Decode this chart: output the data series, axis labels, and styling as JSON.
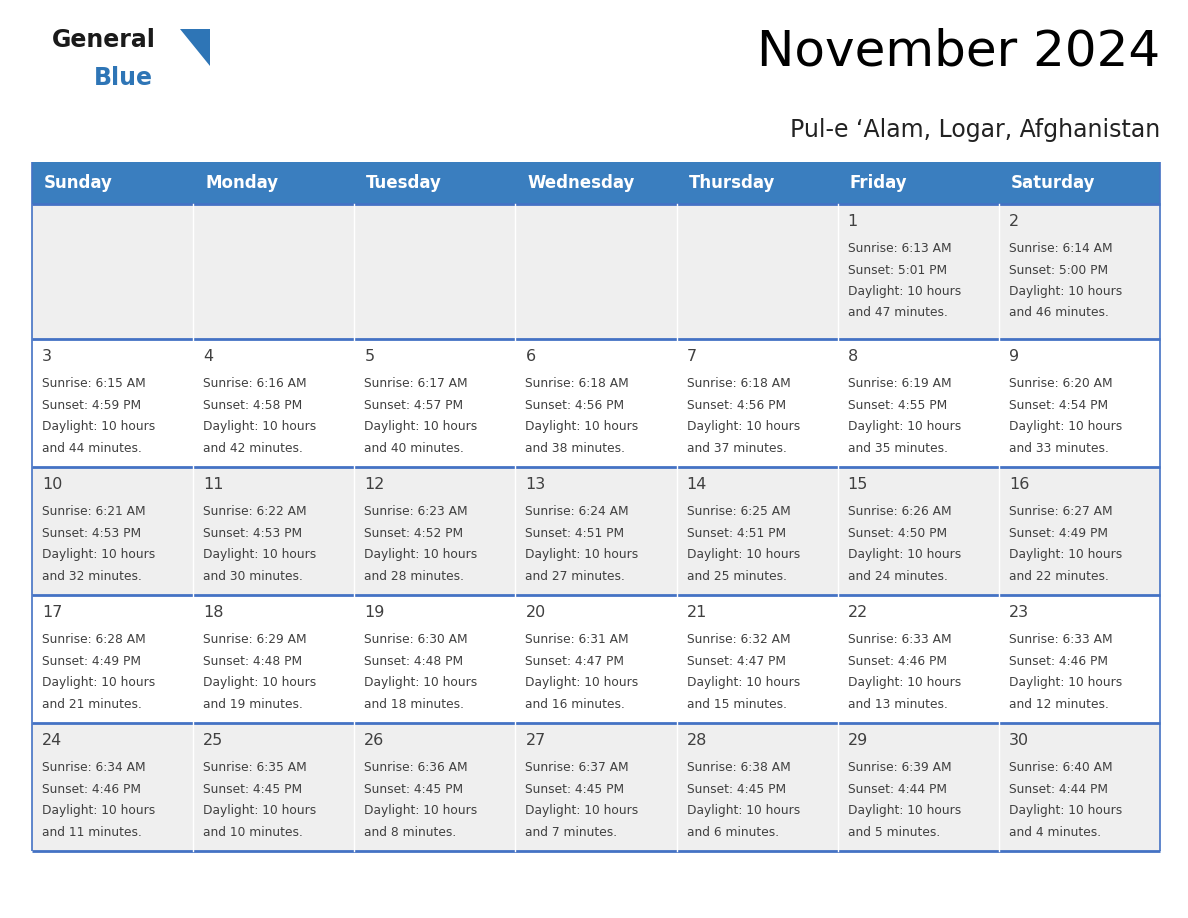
{
  "title": "November 2024",
  "subtitle": "Pul-e ‘Alam, Logar, Afghanistan",
  "days_of_week": [
    "Sunday",
    "Monday",
    "Tuesday",
    "Wednesday",
    "Thursday",
    "Friday",
    "Saturday"
  ],
  "header_bg": "#3A7EBF",
  "header_text": "#FFFFFF",
  "cell_bg_odd": "#EFEFEF",
  "cell_bg_even": "#FFFFFF",
  "separator_color": "#4472C4",
  "text_color": "#404040",
  "logo_general_color": "#1a1a1a",
  "logo_blue_color": "#2E75B6",
  "logo_triangle_color": "#2E75B6",
  "calendar_data": [
    [
      null,
      null,
      null,
      null,
      null,
      {
        "day": 1,
        "sunrise": "6:13 AM",
        "sunset": "5:01 PM",
        "daylight": "10 hours and 47 minutes."
      },
      {
        "day": 2,
        "sunrise": "6:14 AM",
        "sunset": "5:00 PM",
        "daylight": "10 hours and 46 minutes."
      }
    ],
    [
      {
        "day": 3,
        "sunrise": "6:15 AM",
        "sunset": "4:59 PM",
        "daylight": "10 hours and 44 minutes."
      },
      {
        "day": 4,
        "sunrise": "6:16 AM",
        "sunset": "4:58 PM",
        "daylight": "10 hours and 42 minutes."
      },
      {
        "day": 5,
        "sunrise": "6:17 AM",
        "sunset": "4:57 PM",
        "daylight": "10 hours and 40 minutes."
      },
      {
        "day": 6,
        "sunrise": "6:18 AM",
        "sunset": "4:56 PM",
        "daylight": "10 hours and 38 minutes."
      },
      {
        "day": 7,
        "sunrise": "6:18 AM",
        "sunset": "4:56 PM",
        "daylight": "10 hours and 37 minutes."
      },
      {
        "day": 8,
        "sunrise": "6:19 AM",
        "sunset": "4:55 PM",
        "daylight": "10 hours and 35 minutes."
      },
      {
        "day": 9,
        "sunrise": "6:20 AM",
        "sunset": "4:54 PM",
        "daylight": "10 hours and 33 minutes."
      }
    ],
    [
      {
        "day": 10,
        "sunrise": "6:21 AM",
        "sunset": "4:53 PM",
        "daylight": "10 hours and 32 minutes."
      },
      {
        "day": 11,
        "sunrise": "6:22 AM",
        "sunset": "4:53 PM",
        "daylight": "10 hours and 30 minutes."
      },
      {
        "day": 12,
        "sunrise": "6:23 AM",
        "sunset": "4:52 PM",
        "daylight": "10 hours and 28 minutes."
      },
      {
        "day": 13,
        "sunrise": "6:24 AM",
        "sunset": "4:51 PM",
        "daylight": "10 hours and 27 minutes."
      },
      {
        "day": 14,
        "sunrise": "6:25 AM",
        "sunset": "4:51 PM",
        "daylight": "10 hours and 25 minutes."
      },
      {
        "day": 15,
        "sunrise": "6:26 AM",
        "sunset": "4:50 PM",
        "daylight": "10 hours and 24 minutes."
      },
      {
        "day": 16,
        "sunrise": "6:27 AM",
        "sunset": "4:49 PM",
        "daylight": "10 hours and 22 minutes."
      }
    ],
    [
      {
        "day": 17,
        "sunrise": "6:28 AM",
        "sunset": "4:49 PM",
        "daylight": "10 hours and 21 minutes."
      },
      {
        "day": 18,
        "sunrise": "6:29 AM",
        "sunset": "4:48 PM",
        "daylight": "10 hours and 19 minutes."
      },
      {
        "day": 19,
        "sunrise": "6:30 AM",
        "sunset": "4:48 PM",
        "daylight": "10 hours and 18 minutes."
      },
      {
        "day": 20,
        "sunrise": "6:31 AM",
        "sunset": "4:47 PM",
        "daylight": "10 hours and 16 minutes."
      },
      {
        "day": 21,
        "sunrise": "6:32 AM",
        "sunset": "4:47 PM",
        "daylight": "10 hours and 15 minutes."
      },
      {
        "day": 22,
        "sunrise": "6:33 AM",
        "sunset": "4:46 PM",
        "daylight": "10 hours and 13 minutes."
      },
      {
        "day": 23,
        "sunrise": "6:33 AM",
        "sunset": "4:46 PM",
        "daylight": "10 hours and 12 minutes."
      }
    ],
    [
      {
        "day": 24,
        "sunrise": "6:34 AM",
        "sunset": "4:46 PM",
        "daylight": "10 hours and 11 minutes."
      },
      {
        "day": 25,
        "sunrise": "6:35 AM",
        "sunset": "4:45 PM",
        "daylight": "10 hours and 10 minutes."
      },
      {
        "day": 26,
        "sunrise": "6:36 AM",
        "sunset": "4:45 PM",
        "daylight": "10 hours and 8 minutes."
      },
      {
        "day": 27,
        "sunrise": "6:37 AM",
        "sunset": "4:45 PM",
        "daylight": "10 hours and 7 minutes."
      },
      {
        "day": 28,
        "sunrise": "6:38 AM",
        "sunset": "4:45 PM",
        "daylight": "10 hours and 6 minutes."
      },
      {
        "day": 29,
        "sunrise": "6:39 AM",
        "sunset": "4:44 PM",
        "daylight": "10 hours and 5 minutes."
      },
      {
        "day": 30,
        "sunrise": "6:40 AM",
        "sunset": "4:44 PM",
        "daylight": "10 hours and 4 minutes."
      }
    ]
  ]
}
